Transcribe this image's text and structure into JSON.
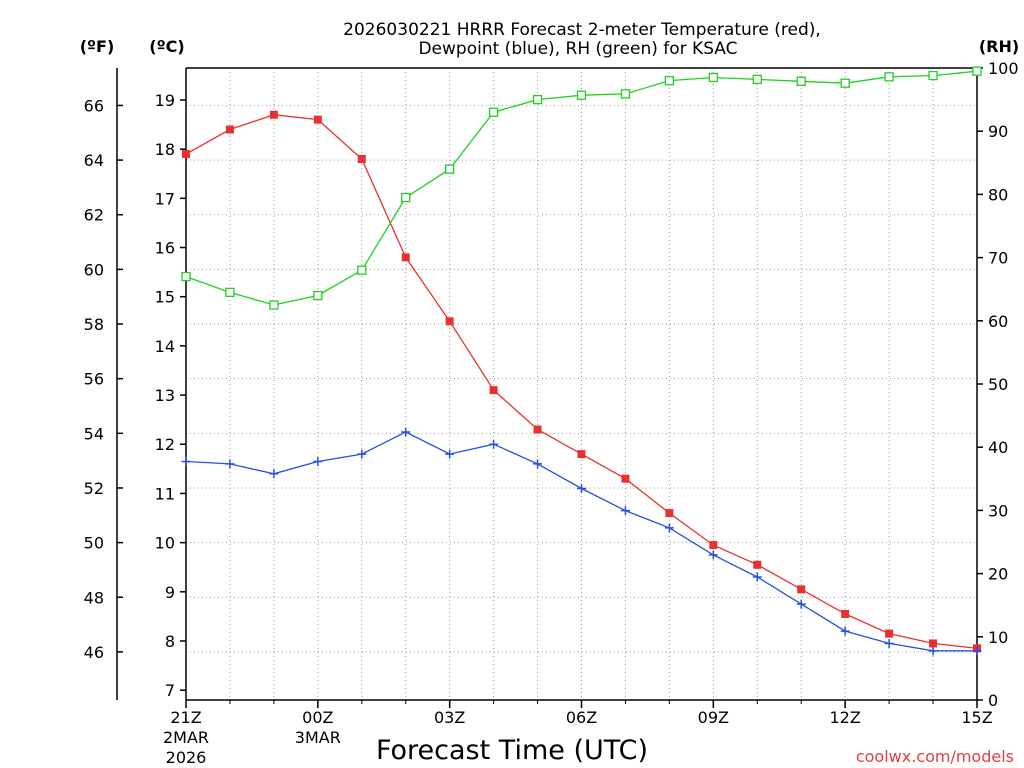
{
  "chart_data": {
    "type": "line",
    "title_line1": "2026030221 HRRR Forecast 2-meter Temperature (red),",
    "title_line2": "Dewpoint (blue), RH (green) for KSAC",
    "xlabel": "Forecast Time (UTC)",
    "credit": "coolwx.com/models",
    "units": {
      "f": "(ºF)",
      "c": "(ºC)",
      "rh": "(RH)"
    },
    "hours": [
      0,
      1,
      2,
      3,
      4,
      5,
      6,
      7,
      8,
      9,
      10,
      11,
      12,
      13,
      14,
      15,
      16,
      17,
      18
    ],
    "x_ticks": [
      {
        "hour": 0,
        "label": "21Z",
        "sub1": "2MAR",
        "sub2": "2026"
      },
      {
        "hour": 3,
        "label": "00Z",
        "sub1": "3MAR",
        "sub2": ""
      },
      {
        "hour": 6,
        "label": "03Z",
        "sub1": "",
        "sub2": ""
      },
      {
        "hour": 9,
        "label": "06Z",
        "sub1": "",
        "sub2": ""
      },
      {
        "hour": 12,
        "label": "09Z",
        "sub1": "",
        "sub2": ""
      },
      {
        "hour": 15,
        "label": "12Z",
        "sub1": "",
        "sub2": ""
      },
      {
        "hour": 18,
        "label": "15Z",
        "sub1": "",
        "sub2": ""
      }
    ],
    "ylim_c": [
      6.8,
      19.65
    ],
    "ylim_rh": [
      0,
      100
    ],
    "c_ticks": [
      7,
      8,
      9,
      10,
      11,
      12,
      13,
      14,
      15,
      16,
      17,
      18,
      19
    ],
    "f_ticks": [
      46,
      48,
      50,
      52,
      54,
      56,
      58,
      60,
      62,
      64,
      66
    ],
    "rh_ticks": [
      0,
      10,
      20,
      30,
      40,
      50,
      60,
      70,
      80,
      90,
      100
    ],
    "series": [
      {
        "name": "Temperature",
        "color": "#e83030",
        "marker": "filled-square",
        "axis": "c",
        "values": [
          17.9,
          18.4,
          18.7,
          18.6,
          17.8,
          15.8,
          14.5,
          13.1,
          12.3,
          11.8,
          11.3,
          10.6,
          9.95,
          9.55,
          9.05,
          8.55,
          8.15,
          7.95,
          7.85
        ]
      },
      {
        "name": "Dewpoint",
        "color": "#2850e0",
        "marker": "plus",
        "axis": "c",
        "values": [
          11.65,
          11.6,
          11.4,
          11.65,
          11.8,
          12.25,
          11.8,
          12.0,
          11.6,
          11.1,
          10.65,
          10.3,
          9.75,
          9.3,
          8.75,
          8.2,
          7.95,
          7.8,
          7.8
        ]
      },
      {
        "name": "RH",
        "color": "#20d020",
        "marker": "open-square",
        "axis": "rh",
        "values": [
          67,
          64.5,
          62.5,
          64,
          68,
          79.5,
          84,
          93,
          95,
          95.7,
          95.9,
          98,
          98.5,
          98.2,
          97.9,
          97.6,
          98.6,
          98.8,
          99.5
        ]
      }
    ]
  }
}
